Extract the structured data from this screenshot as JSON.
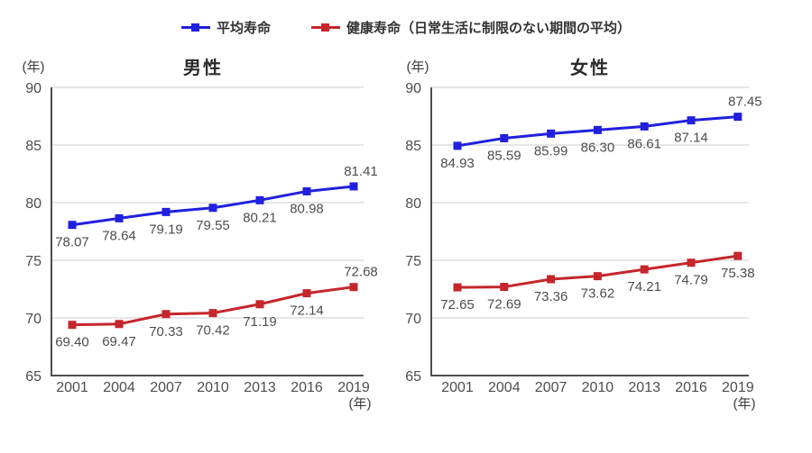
{
  "legend": {
    "items": [
      {
        "label": "平均寿命",
        "color": "#2020dd",
        "marker": "square-on-line"
      },
      {
        "label": "健康寿命（日常生活に制限のない期間の平均）",
        "color": "#c5262c",
        "marker": "square-on-line"
      }
    ]
  },
  "chart_data": [
    {
      "type": "line",
      "title": "男性",
      "y_unit_label": "(年)",
      "x_unit_label": "(年)",
      "categories": [
        2001,
        2004,
        2007,
        2010,
        2013,
        2016,
        2019
      ],
      "ylim": [
        65,
        90
      ],
      "ytick_step": 5,
      "grid": true,
      "legend_position": "top",
      "series": [
        {
          "name": "平均寿命",
          "color": "#2020dd",
          "values": [
            78.07,
            78.64,
            79.19,
            79.55,
            80.21,
            80.98,
            81.41
          ],
          "last_label_position": "above"
        },
        {
          "name": "健康寿命（日常生活に制限のない期間の平均）",
          "color": "#c5262c",
          "values": [
            69.4,
            69.47,
            70.33,
            70.42,
            71.19,
            72.14,
            72.68
          ],
          "last_label_position": "above"
        }
      ]
    },
    {
      "type": "line",
      "title": "女性",
      "y_unit_label": "(年)",
      "x_unit_label": "(年)",
      "categories": [
        2001,
        2004,
        2007,
        2010,
        2013,
        2016,
        2019
      ],
      "ylim": [
        65,
        90
      ],
      "ytick_step": 5,
      "grid": true,
      "legend_position": "top",
      "series": [
        {
          "name": "平均寿命",
          "color": "#2020dd",
          "values": [
            84.93,
            85.59,
            85.99,
            86.3,
            86.61,
            87.14,
            87.45
          ],
          "last_label_position": "above"
        },
        {
          "name": "健康寿命（日常生活に制限のない期間の平均）",
          "color": "#c5262c",
          "values": [
            72.65,
            72.69,
            73.36,
            73.62,
            74.21,
            74.79,
            75.38
          ],
          "last_label_position": "below"
        }
      ]
    }
  ],
  "colors": {
    "blue_series": "#2020dd",
    "red_series": "#c5262c",
    "gridline": "#cdcdcd",
    "axis": "#4d4d4d",
    "label_text": "#4d4d4d"
  }
}
